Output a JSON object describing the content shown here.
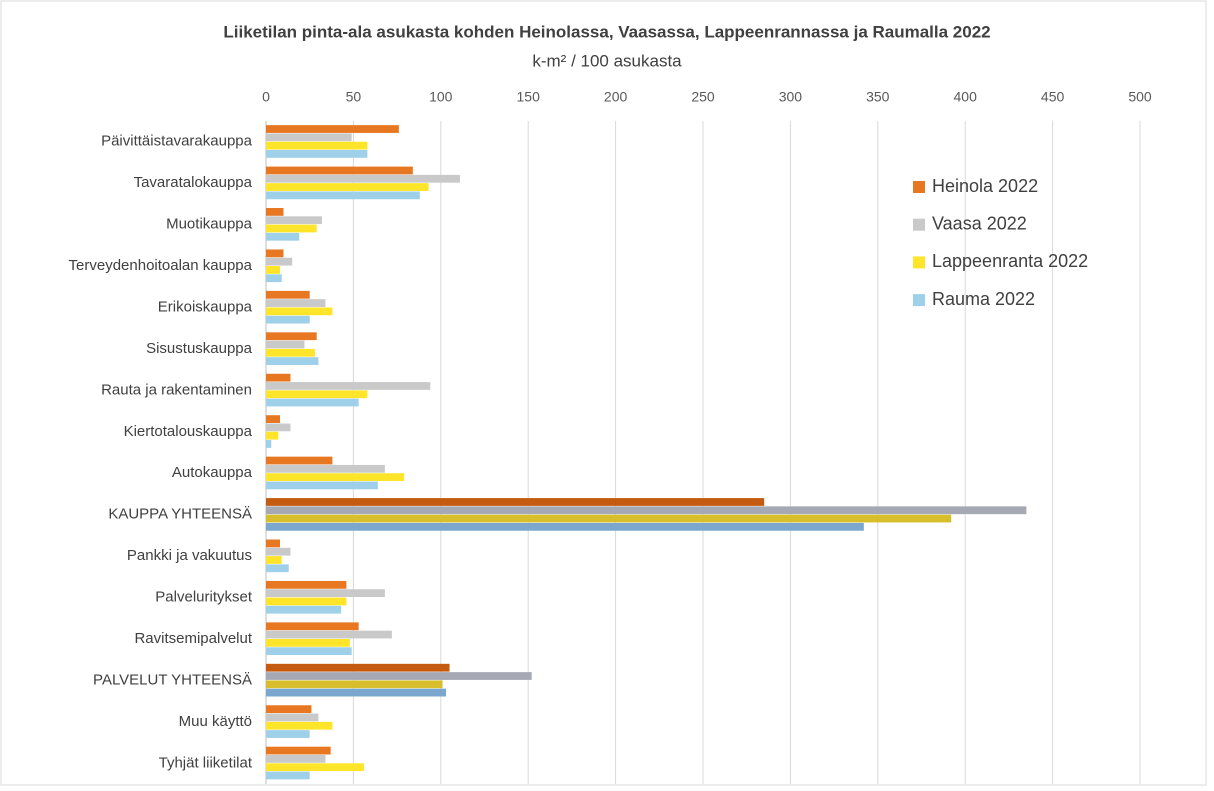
{
  "chart_data": {
    "type": "bar",
    "orientation": "horizontal",
    "title": "Liiketilan pinta-ala asukasta kohden Heinolassa, Vaasassa, Lappeenrannassa ja Raumalla 2022",
    "subtitle": "k-m² / 100 asukasta",
    "categories": [
      "Päivittäistavarakauppa",
      "Tavaratalokauppa",
      "Muotikauppa",
      "Terveydenhoitoalan kauppa",
      "Erikoiskauppa",
      "Sisustuskauppa",
      "Rauta ja rakentaminen",
      "Kiertotalouskauppa",
      "Autokauppa",
      "KAUPPA YHTEENSÄ",
      "Pankki ja vakuutus",
      "Palveluritykset",
      "Ravitsemipalvelut",
      "PALVELUT YHTEENSÄ",
      "Muu käyttö",
      "Tyhjät liiketilat"
    ],
    "series": [
      {
        "name": "Heinola 2022",
        "color": "#e87722",
        "total_color": "#c55a11",
        "values": [
          76,
          84,
          10,
          10,
          25,
          29,
          14,
          8,
          38,
          285,
          8,
          46,
          53,
          105,
          26,
          37
        ]
      },
      {
        "name": "Vaasa 2022",
        "color": "#c9c9c9",
        "total_color": "#a5a9b4",
        "values": [
          49,
          111,
          32,
          15,
          34,
          22,
          94,
          14,
          68,
          435,
          14,
          68,
          72,
          152,
          30,
          34
        ]
      },
      {
        "name": "Lappeenranta 2022",
        "color": "#ffe52a",
        "total_color": "#d9be2c",
        "values": [
          58,
          93,
          29,
          8,
          38,
          28,
          58,
          7,
          79,
          392,
          9,
          46,
          48,
          101,
          38,
          56
        ]
      },
      {
        "name": "Rauma 2022",
        "color": "#9fd0ea",
        "total_color": "#7ba7cf",
        "values": [
          58,
          88,
          19,
          9,
          25,
          30,
          53,
          3,
          64,
          342,
          13,
          43,
          49,
          103,
          25,
          25
        ]
      }
    ],
    "totals": [
      9,
      13
    ],
    "xlim": [
      0,
      500
    ],
    "xticks": [
      0,
      50,
      100,
      150,
      200,
      250,
      300,
      350,
      400,
      450,
      500
    ],
    "grid": true,
    "legend": "right"
  }
}
